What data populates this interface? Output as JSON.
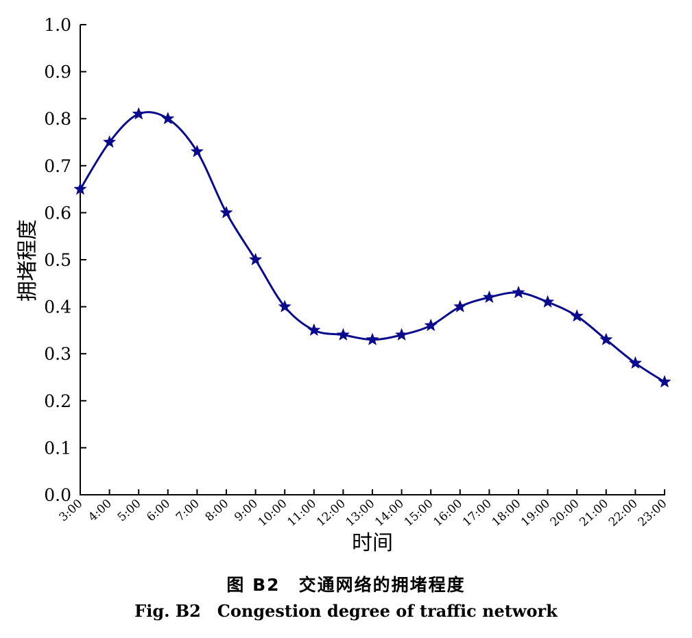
{
  "chart_data": {
    "type": "line",
    "xlabel": "时间",
    "ylabel": "拥堵程度",
    "ylim": [
      0.0,
      1.0
    ],
    "yticks": [
      "0.0",
      "0.1",
      "0.2",
      "0.3",
      "0.4",
      "0.5",
      "0.6",
      "0.7",
      "0.8",
      "0.9",
      "1.0"
    ],
    "categories": [
      "3:00",
      "4:00",
      "5:00",
      "6:00",
      "7:00",
      "8:00",
      "9:00",
      "10:00",
      "11:00",
      "12:00",
      "13:00",
      "14:00",
      "15:00",
      "16:00",
      "17:00",
      "18:00",
      "19:00",
      "20:00",
      "21:00",
      "22:00",
      "23:00"
    ],
    "series": [
      {
        "values": [
          0.65,
          0.75,
          0.81,
          0.8,
          0.73,
          0.6,
          0.5,
          0.4,
          0.35,
          0.34,
          0.33,
          0.34,
          0.36,
          0.4,
          0.42,
          0.43,
          0.41,
          0.38,
          0.33,
          0.28,
          0.24
        ],
        "color": "#0a0a8c",
        "marker": "star"
      }
    ],
    "grid": false
  },
  "caption": {
    "cn": "图 B2　交通网络的拥堵程度",
    "en": "Fig. B2　Congestion degree of traffic network"
  }
}
